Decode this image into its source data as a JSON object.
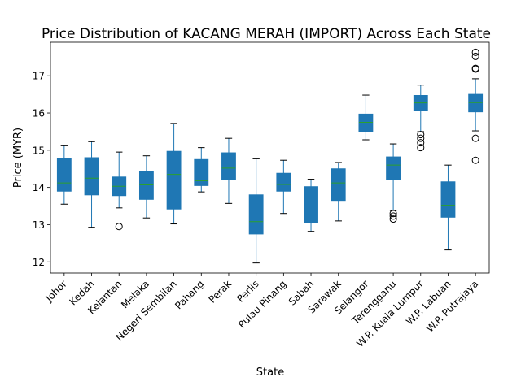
{
  "chart_data": {
    "type": "box",
    "title": "Price Distribution of KACANG MERAH (IMPORT) Across Each State",
    "xlabel": "State",
    "ylabel": "Price (MYR)",
    "ylim": [
      11.7,
      17.9
    ],
    "yticks": [
      12,
      13,
      14,
      15,
      16,
      17
    ],
    "colors": {
      "box": "#1f77b4",
      "median": "#2ca02c",
      "whisker": "#1f77b4",
      "cap": "#000000",
      "outlier": "#000000"
    },
    "series": [
      {
        "name": "Johor",
        "whislo": 13.55,
        "q1": 13.9,
        "med": 14.12,
        "q3": 14.77,
        "whishi": 15.12,
        "fliers": []
      },
      {
        "name": "Kedah",
        "whislo": 12.93,
        "q1": 13.8,
        "med": 14.25,
        "q3": 14.8,
        "whishi": 15.23,
        "fliers": []
      },
      {
        "name": "Kelantan",
        "whislo": 13.45,
        "q1": 13.78,
        "med": 14.03,
        "q3": 14.28,
        "whishi": 14.95,
        "fliers": [
          12.95
        ]
      },
      {
        "name": "Melaka",
        "whislo": 13.18,
        "q1": 13.68,
        "med": 14.07,
        "q3": 14.43,
        "whishi": 14.85,
        "fliers": []
      },
      {
        "name": "Negeri Sembilan",
        "whislo": 13.02,
        "q1": 13.42,
        "med": 14.35,
        "q3": 14.97,
        "whishi": 15.72,
        "fliers": []
      },
      {
        "name": "Pahang",
        "whislo": 13.88,
        "q1": 14.05,
        "med": 14.18,
        "q3": 14.75,
        "whishi": 15.07,
        "fliers": []
      },
      {
        "name": "Perak",
        "whislo": 13.57,
        "q1": 14.2,
        "med": 14.52,
        "q3": 14.93,
        "whishi": 15.32,
        "fliers": []
      },
      {
        "name": "Perlis",
        "whislo": 11.97,
        "q1": 12.75,
        "med": 13.08,
        "q3": 13.8,
        "whishi": 14.77,
        "fliers": []
      },
      {
        "name": "Pulau Pinang",
        "whislo": 13.3,
        "q1": 13.9,
        "med": 14.08,
        "q3": 14.38,
        "whishi": 14.73,
        "fliers": []
      },
      {
        "name": "Sabah",
        "whislo": 12.82,
        "q1": 13.05,
        "med": 13.85,
        "q3": 14.02,
        "whishi": 14.22,
        "fliers": []
      },
      {
        "name": "Sarawak",
        "whislo": 13.1,
        "q1": 13.65,
        "med": 14.12,
        "q3": 14.5,
        "whishi": 14.67,
        "fliers": []
      },
      {
        "name": "Selangor",
        "whislo": 15.28,
        "q1": 15.5,
        "med": 15.75,
        "q3": 15.97,
        "whishi": 16.48,
        "fliers": []
      },
      {
        "name": "Terengganu",
        "whislo": 13.38,
        "q1": 14.22,
        "med": 14.6,
        "q3": 14.82,
        "whishi": 15.17,
        "fliers": [
          13.3,
          13.23,
          13.15
        ]
      },
      {
        "name": "W.P. Kuala Lumpur",
        "whislo": 15.5,
        "q1": 16.07,
        "med": 16.27,
        "q3": 16.47,
        "whishi": 16.75,
        "fliers": [
          15.42,
          15.32,
          15.2,
          15.07
        ]
      },
      {
        "name": "W.P. Labuan",
        "whislo": 12.32,
        "q1": 13.2,
        "med": 13.52,
        "q3": 14.15,
        "whishi": 14.6,
        "fliers": []
      },
      {
        "name": "W.P. Putrajaya",
        "whislo": 15.52,
        "q1": 16.03,
        "med": 16.28,
        "q3": 16.5,
        "whishi": 16.92,
        "fliers": [
          17.63,
          17.52,
          17.2,
          17.18,
          15.32,
          14.73
        ]
      }
    ]
  }
}
